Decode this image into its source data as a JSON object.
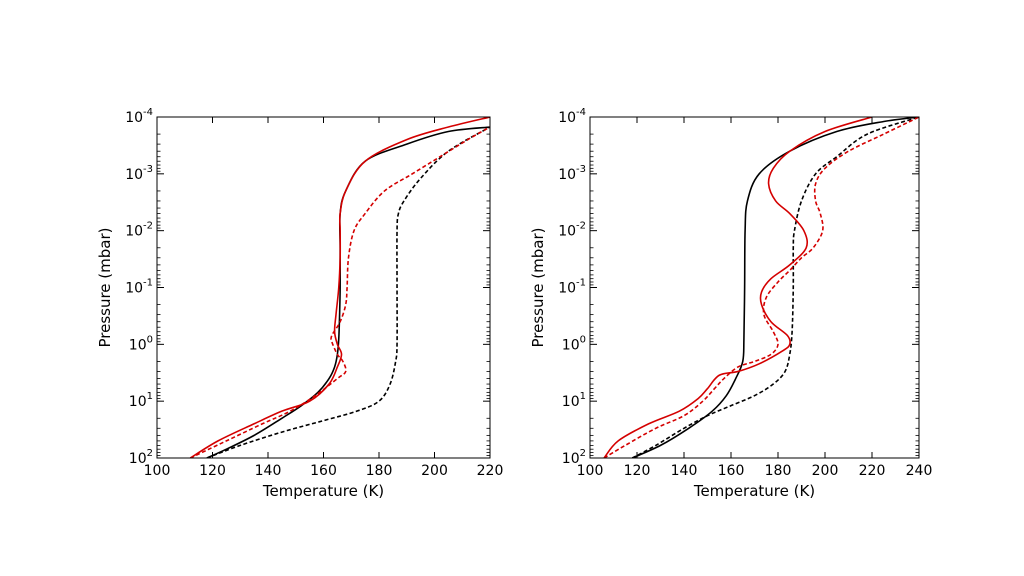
{
  "chart_data": [
    {
      "type": "line",
      "xlabel": "Temperature (K)",
      "ylabel": "Pressure (mbar)",
      "xlim": [
        100,
        220
      ],
      "ylim": [
        100,
        0.0001
      ],
      "yscale": "log",
      "yinverted": true,
      "x_ticks": [
        {
          "value": 100,
          "label": "100"
        },
        {
          "value": 120,
          "label": "120"
        },
        {
          "value": 140,
          "label": "140"
        },
        {
          "value": 160,
          "label": "160"
        },
        {
          "value": 180,
          "label": "180"
        },
        {
          "value": 200,
          "label": "200"
        },
        {
          "value": 220,
          "label": "220"
        }
      ],
      "y_ticks": [
        {
          "value": 0.0001,
          "base": "10",
          "exp": "-4"
        },
        {
          "value": 0.001,
          "base": "10",
          "exp": "-3"
        },
        {
          "value": 0.01,
          "base": "10",
          "exp": "-2"
        },
        {
          "value": 0.1,
          "base": "10",
          "exp": "-1"
        },
        {
          "value": 1,
          "base": "10",
          "exp": "0"
        },
        {
          "value": 10,
          "base": "10",
          "exp": "1"
        },
        {
          "value": 100,
          "base": "10",
          "exp": "2"
        }
      ],
      "grid": false,
      "series": [
        {
          "color": "#000000",
          "dash": "solid",
          "points": [
            [
              118,
              100
            ],
            [
              125,
              70
            ],
            [
              135,
              40
            ],
            [
              145,
              20
            ],
            [
              152,
              12
            ],
            [
              158,
              7
            ],
            [
              162,
              4
            ],
            [
              164,
              2.5
            ],
            [
              165,
              1.5
            ],
            [
              165.5,
              0.8
            ],
            [
              165.8,
              0.3
            ],
            [
              166,
              0.1
            ],
            [
              166,
              0.02
            ],
            [
              166,
              0.005
            ],
            [
              168,
              0.002
            ],
            [
              175,
              0.0006
            ],
            [
              190,
              0.0003
            ],
            [
              205,
              0.00018
            ],
            [
              220,
              0.00015
            ]
          ]
        },
        {
          "color": "#000000",
          "dash": "dashed",
          "points": [
            [
              118,
              100
            ],
            [
              130,
              60
            ],
            [
              145,
              35
            ],
            [
              160,
              22
            ],
            [
              172,
              15
            ],
            [
              180,
              10
            ],
            [
              184,
              5
            ],
            [
              186,
              2
            ],
            [
              186.5,
              1
            ],
            [
              186.5,
              0.1
            ],
            [
              186.5,
              0.01
            ],
            [
              187,
              0.005
            ],
            [
              189,
              0.003
            ],
            [
              195,
              0.0012
            ],
            [
              205,
              0.0004
            ],
            [
              220,
              0.00015
            ]
          ]
        },
        {
          "color": "#d40000",
          "dash": "solid",
          "points": [
            [
              112,
              100
            ],
            [
              122,
              50
            ],
            [
              135,
              25
            ],
            [
              145,
              15
            ],
            [
              155,
              10
            ],
            [
              162,
              5
            ],
            [
              165,
              2.5
            ],
            [
              166.5,
              1.5
            ],
            [
              165,
              1
            ],
            [
              164,
              0.6
            ],
            [
              164.5,
              0.3
            ],
            [
              165.5,
              0.1
            ],
            [
              166,
              0.03
            ],
            [
              166,
              0.01
            ],
            [
              166,
              0.005
            ],
            [
              168,
              0.002
            ],
            [
              175,
              0.0006
            ],
            [
              190,
              0.00025
            ],
            [
              205,
              0.00015
            ],
            [
              220,
              0.0001
            ]
          ]
        },
        {
          "color": "#d40000",
          "dash": "dashed",
          "points": [
            [
              112,
              100
            ],
            [
              125,
              50
            ],
            [
              138,
              25
            ],
            [
              148,
              15
            ],
            [
              157,
              8
            ],
            [
              165,
              4
            ],
            [
              168,
              3
            ],
            [
              167,
              2
            ],
            [
              165,
              1.5
            ],
            [
              163,
              0.9
            ],
            [
              163,
              0.7
            ],
            [
              166,
              0.4
            ],
            [
              168,
              0.2
            ],
            [
              168.5,
              0.1
            ],
            [
              169,
              0.03
            ],
            [
              171,
              0.01
            ],
            [
              175,
              0.005
            ],
            [
              182,
              0.002
            ],
            [
              192,
              0.001
            ],
            [
              202,
              0.0005
            ],
            [
              212,
              0.00025
            ],
            [
              220,
              0.00015
            ]
          ]
        }
      ]
    },
    {
      "type": "line",
      "xlabel": "Temperature (K)",
      "ylabel": "Pressure (mbar)",
      "xlim": [
        100,
        240
      ],
      "ylim": [
        100,
        0.0001
      ],
      "yscale": "log",
      "yinverted": true,
      "x_ticks": [
        {
          "value": 100,
          "label": "100"
        },
        {
          "value": 120,
          "label": "120"
        },
        {
          "value": 140,
          "label": "140"
        },
        {
          "value": 160,
          "label": "160"
        },
        {
          "value": 180,
          "label": "180"
        },
        {
          "value": 200,
          "label": "200"
        },
        {
          "value": 220,
          "label": "220"
        },
        {
          "value": 240,
          "label": "240"
        }
      ],
      "y_ticks": [
        {
          "value": 0.0001,
          "base": "10",
          "exp": "-4"
        },
        {
          "value": 0.001,
          "base": "10",
          "exp": "-3"
        },
        {
          "value": 0.01,
          "base": "10",
          "exp": "-2"
        },
        {
          "value": 0.1,
          "base": "10",
          "exp": "-1"
        },
        {
          "value": 1,
          "base": "10",
          "exp": "0"
        },
        {
          "value": 10,
          "base": "10",
          "exp": "1"
        },
        {
          "value": 100,
          "base": "10",
          "exp": "2"
        }
      ],
      "grid": false,
      "series": [
        {
          "color": "#000000",
          "dash": "solid",
          "points": [
            [
              118,
              100
            ],
            [
              130,
              60
            ],
            [
              142,
              30
            ],
            [
              152,
              15
            ],
            [
              158,
              8
            ],
            [
              162,
              4
            ],
            [
              165,
              2
            ],
            [
              165.5,
              0.8
            ],
            [
              165.8,
              0.1
            ],
            [
              166,
              0.01
            ],
            [
              167,
              0.003
            ],
            [
              172,
              0.001
            ],
            [
              185,
              0.0004
            ],
            [
              205,
              0.00018
            ],
            [
              225,
              0.00012
            ],
            [
              240,
              0.0001
            ]
          ]
        },
        {
          "color": "#000000",
          "dash": "dashed",
          "points": [
            [
              118,
              100
            ],
            [
              128,
              60
            ],
            [
              140,
              30
            ],
            [
              150,
              18
            ],
            [
              160,
              12
            ],
            [
              170,
              8
            ],
            [
              178,
              5
            ],
            [
              183,
              3
            ],
            [
              185,
              1.5
            ],
            [
              186,
              0.6
            ],
            [
              186.5,
              0.1
            ],
            [
              186.5,
              0.02
            ],
            [
              187,
              0.01
            ],
            [
              190,
              0.003
            ],
            [
              196,
              0.001
            ],
            [
              205,
              0.0005
            ],
            [
              218,
              0.0002
            ],
            [
              240,
              0.0001
            ]
          ]
        },
        {
          "color": "#d40000",
          "dash": "solid",
          "points": [
            [
              106,
              100
            ],
            [
              112,
              50
            ],
            [
              125,
              25
            ],
            [
              138,
              15
            ],
            [
              146,
              9
            ],
            [
              150,
              6
            ],
            [
              155,
              3.5
            ],
            [
              163,
              3
            ],
            [
              172,
              2.2
            ],
            [
              182,
              1.3
            ],
            [
              185,
              1
            ],
            [
              184,
              0.7
            ],
            [
              177,
              0.4
            ],
            [
              173,
              0.2
            ],
            [
              173,
              0.12
            ],
            [
              177,
              0.07
            ],
            [
              185,
              0.04
            ],
            [
              192,
              0.02
            ],
            [
              191,
              0.01
            ],
            [
              185,
              0.005
            ],
            [
              179,
              0.003
            ],
            [
              176,
              0.0015
            ],
            [
              178,
              0.0008
            ],
            [
              185,
              0.0004
            ],
            [
              200,
              0.00018
            ],
            [
              220,
              0.0001
            ]
          ]
        },
        {
          "color": "#d40000",
          "dash": "dashed",
          "points": [
            [
              106,
              100
            ],
            [
              115,
              60
            ],
            [
              128,
              30
            ],
            [
              140,
              18
            ],
            [
              148,
              10
            ],
            [
              153,
              6
            ],
            [
              157,
              4
            ],
            [
              163,
              2.5
            ],
            [
              170,
              2
            ],
            [
              177,
              1.5
            ],
            [
              180,
              1
            ],
            [
              178,
              0.6
            ],
            [
              174,
              0.3
            ],
            [
              175,
              0.15
            ],
            [
              180,
              0.08
            ],
            [
              185,
              0.05
            ],
            [
              190,
              0.03
            ],
            [
              195,
              0.02
            ],
            [
              199,
              0.01
            ],
            [
              198,
              0.005
            ],
            [
              196,
              0.003
            ],
            [
              196,
              0.0015
            ],
            [
              200,
              0.0008
            ],
            [
              210,
              0.0004
            ],
            [
              225,
              0.0002
            ],
            [
              240,
              0.0001
            ]
          ]
        }
      ]
    }
  ]
}
